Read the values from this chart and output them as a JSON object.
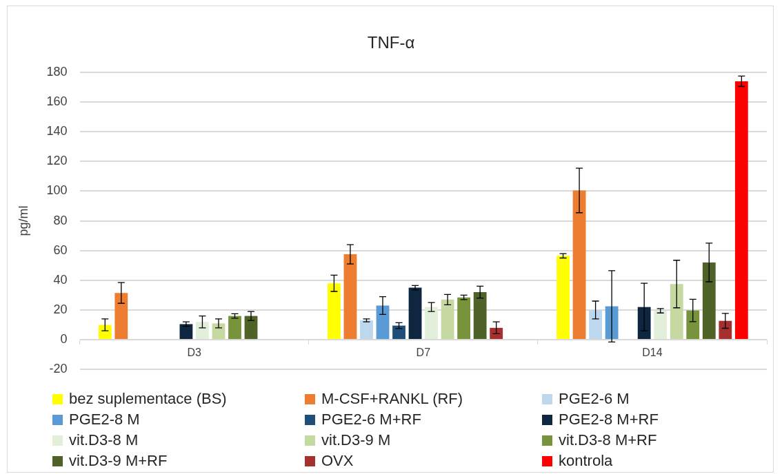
{
  "chart_data": {
    "type": "bar",
    "title": "TNF-α",
    "ylabel": "pg/ml",
    "categories": [
      "D3",
      "D7",
      "D14"
    ],
    "ylim": [
      -20,
      180
    ],
    "yticks": [
      -20,
      0,
      20,
      40,
      60,
      80,
      100,
      120,
      140,
      160,
      180
    ],
    "grid": "y",
    "legend": "bottom",
    "series": [
      {
        "name": "bez suplementace (BS)",
        "color": "#ffff00",
        "values": [
          10,
          38,
          56.5
        ],
        "errors": [
          4,
          5.5,
          1.5
        ]
      },
      {
        "name": "M-CSF+RANKL (RF)",
        "color": "#ed7d31",
        "values": [
          31.5,
          57.5,
          100.5
        ],
        "errors": [
          7,
          6.5,
          15
        ]
      },
      {
        "name": "PGE2-6 M",
        "color": "#bdd7ee",
        "values": [
          null,
          13,
          20
        ],
        "errors": [
          null,
          1,
          6
        ]
      },
      {
        "name": "PGE2-8 M",
        "color": "#5b9bd5",
        "values": [
          null,
          23,
          22.5
        ],
        "errors": [
          null,
          6,
          24
        ]
      },
      {
        "name": "PGE2-6 M+RF",
        "color": "#1f4e79",
        "values": [
          null,
          9.5,
          null
        ],
        "errors": [
          null,
          2,
          null
        ]
      },
      {
        "name": "PGE2-8 M+RF",
        "color": "#0f2640",
        "values": [
          10.5,
          35,
          22
        ],
        "errors": [
          1.5,
          1.5,
          16
        ]
      },
      {
        "name": "vit.D3-8 M",
        "color": "#e2efda",
        "values": [
          12,
          22,
          19.5
        ],
        "errors": [
          4,
          3,
          1.5
        ]
      },
      {
        "name": "vit.D3-9 M",
        "color": "#c5d9a0",
        "values": [
          11,
          27,
          37.5
        ],
        "errors": [
          3,
          3.5,
          16
        ]
      },
      {
        "name": "vit.D3-8 M+RF",
        "color": "#77933c",
        "values": [
          16,
          28.5,
          19.7
        ],
        "errors": [
          1.5,
          1.5,
          7.5
        ]
      },
      {
        "name": "vit.D3-9 M+RF",
        "color": "#4f6228",
        "values": [
          16,
          32,
          52
        ],
        "errors": [
          3,
          4,
          13
        ]
      },
      {
        "name": "OVX",
        "color": "#a5302f",
        "values": [
          null,
          8,
          12.7
        ],
        "errors": [
          null,
          4,
          5
        ]
      },
      {
        "name": "kontrola",
        "color": "#ff0000",
        "values": [
          null,
          null,
          174
        ],
        "errors": [
          null,
          null,
          3.5
        ]
      }
    ]
  }
}
